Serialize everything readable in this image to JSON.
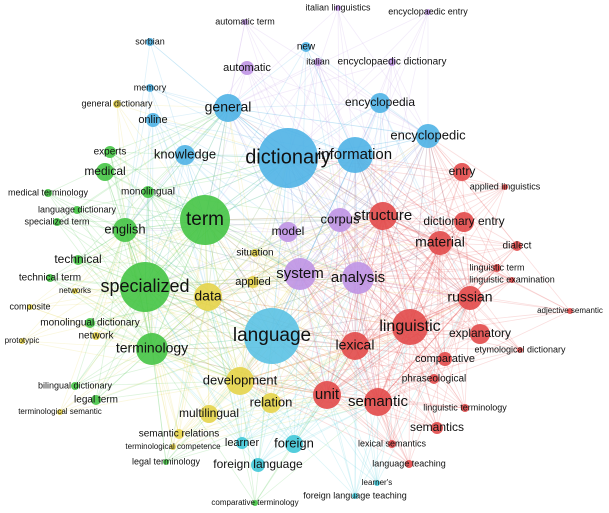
{
  "nodes": [
    {
      "label": "dictionary",
      "color": "#4fb2e6"
    },
    {
      "label": "information",
      "color": "#4fb2e6"
    },
    {
      "label": "encyclopedic",
      "color": "#4fb2e6"
    },
    {
      "label": "encyclopedia",
      "color": "#4fb2e6"
    },
    {
      "label": "general",
      "color": "#4fb2e6"
    },
    {
      "label": "online",
      "color": "#4fb2e6"
    },
    {
      "label": "knowledge",
      "color": "#4fb2e6"
    },
    {
      "label": "automatic",
      "color": "#bf94e4"
    },
    {
      "label": "new",
      "color": "#4fb2e6"
    },
    {
      "label": "italian",
      "color": "#bf94e4"
    },
    {
      "label": "encyclopaedic dictionary",
      "color": "#bf94e4"
    },
    {
      "label": "automatic term",
      "color": "#bf94e4"
    },
    {
      "label": "italian linguistics",
      "color": "#bf94e4"
    },
    {
      "label": "encyclopaedic entry",
      "color": "#bf94e4"
    },
    {
      "label": "sorbian",
      "color": "#4fb2e6"
    },
    {
      "label": "memory",
      "color": "#4fb2e6"
    },
    {
      "label": "general dictionary",
      "color": "#e6d44a"
    },
    {
      "label": "experts",
      "color": "#45c445"
    },
    {
      "label": "medical",
      "color": "#45c445"
    },
    {
      "label": "monolingual",
      "color": "#45c445"
    },
    {
      "label": "medical terminology",
      "color": "#45c445"
    },
    {
      "label": "language dictionary",
      "color": "#45c445"
    },
    {
      "label": "specialized term",
      "color": "#45c445"
    },
    {
      "label": "term",
      "color": "#45c445"
    },
    {
      "label": "english",
      "color": "#45c445"
    },
    {
      "label": "model",
      "color": "#bf94e4"
    },
    {
      "label": "corpus",
      "color": "#bf94e4"
    },
    {
      "label": "structure",
      "color": "#e24a4a"
    },
    {
      "label": "entry",
      "color": "#e24a4a"
    },
    {
      "label": "applied linguistics",
      "color": "#e24a4a"
    },
    {
      "label": "dictionary entry",
      "color": "#e24a4a"
    },
    {
      "label": "material",
      "color": "#e24a4a"
    },
    {
      "label": "dialect",
      "color": "#e24a4a"
    },
    {
      "label": "situation",
      "color": "#e6d44a"
    },
    {
      "label": "technical",
      "color": "#45c445"
    },
    {
      "label": "technical term",
      "color": "#45c445"
    },
    {
      "label": "system",
      "color": "#bf94e4"
    },
    {
      "label": "analysis",
      "color": "#bf94e4"
    },
    {
      "label": "linguistic term",
      "color": "#e24a4a"
    },
    {
      "label": "linguistic examination",
      "color": "#e24a4a"
    },
    {
      "label": "specialized",
      "color": "#45c445"
    },
    {
      "label": "data",
      "color": "#e6d44a"
    },
    {
      "label": "applied",
      "color": "#e6d44a"
    },
    {
      "label": "networks",
      "color": "#e6d44a"
    },
    {
      "label": "russian",
      "color": "#e24a4a"
    },
    {
      "label": "composite",
      "color": "#e6d44a"
    },
    {
      "label": "adjective semantic",
      "color": "#e24a4a"
    },
    {
      "label": "monolingual dictionary",
      "color": "#45c445"
    },
    {
      "label": "network",
      "color": "#e6d44a"
    },
    {
      "label": "prototypic",
      "color": "#e6d44a"
    },
    {
      "label": "language",
      "color": "#5bc2e4"
    },
    {
      "label": "linguistic",
      "color": "#e24a4a"
    },
    {
      "label": "explanatory",
      "color": "#e24a4a"
    },
    {
      "label": "etymological dictionary",
      "color": "#e24a4a"
    },
    {
      "label": "terminology",
      "color": "#45c445"
    },
    {
      "label": "lexical",
      "color": "#e24a4a"
    },
    {
      "label": "comparative",
      "color": "#e24a4a"
    },
    {
      "label": "development",
      "color": "#e6d44a"
    },
    {
      "label": "unit",
      "color": "#e24a4a"
    },
    {
      "label": "semantic",
      "color": "#e24a4a"
    },
    {
      "label": "phraseological",
      "color": "#e24a4a"
    },
    {
      "label": "bilingual dictionary",
      "color": "#45c445"
    },
    {
      "label": "legal term",
      "color": "#45c445"
    },
    {
      "label": "terminological semantic",
      "color": "#e6d44a"
    },
    {
      "label": "relation",
      "color": "#e6d44a"
    },
    {
      "label": "linguistic terminology",
      "color": "#e24a4a"
    },
    {
      "label": "multilingual",
      "color": "#e6d44a"
    },
    {
      "label": "semantics",
      "color": "#e24a4a"
    },
    {
      "label": "semantic relations",
      "color": "#e6d44a"
    },
    {
      "label": "learner",
      "color": "#40c8d8"
    },
    {
      "label": "foreign",
      "color": "#40c8d8"
    },
    {
      "label": "lexical semantics",
      "color": "#e24a4a"
    },
    {
      "label": "terminological competence",
      "color": "#e6d44a"
    },
    {
      "label": "legal terminology",
      "color": "#45c445"
    },
    {
      "label": "foreign language",
      "color": "#40c8d8"
    },
    {
      "label": "language teaching",
      "color": "#e24a4a"
    },
    {
      "label": "learner's",
      "color": "#40c8d8"
    },
    {
      "label": "foreign language teaching",
      "color": "#40c8d8"
    },
    {
      "label": "comparative terminology",
      "color": "#45c445"
    }
  ]
}
